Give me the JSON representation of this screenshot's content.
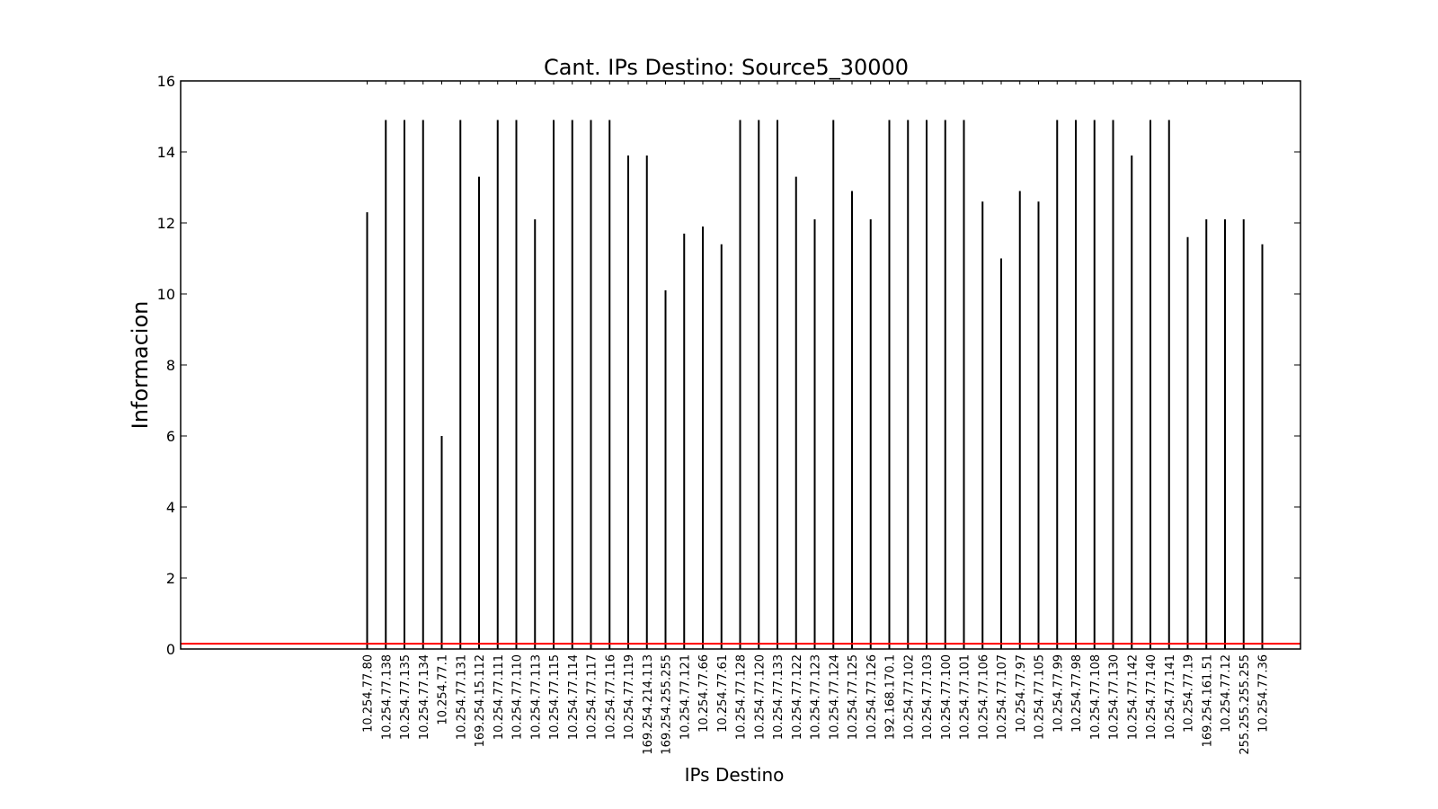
{
  "chart_data": {
    "type": "bar",
    "title": "Cant. IPs Destino: Source5_30000",
    "xlabel": "IPs Destino",
    "ylabel": "Informacion",
    "ylim": [
      0,
      16
    ],
    "yticks": [
      0,
      2,
      4,
      6,
      8,
      10,
      12,
      14,
      16
    ],
    "grid": false,
    "bar_color": "#000000",
    "reference_line": {
      "y": 0.15,
      "color": "#ff0000"
    },
    "categories": [
      "10.254.77.80",
      "10.254.77.138",
      "10.254.77.135",
      "10.254.77.134",
      "10.254.77.1",
      "10.254.77.131",
      "169.254.15.112",
      "10.254.77.111",
      "10.254.77.110",
      "10.254.77.113",
      "10.254.77.115",
      "10.254.77.114",
      "10.254.77.117",
      "10.254.77.116",
      "10.254.77.119",
      "169.254.214.113",
      "169.254.255.255",
      "10.254.77.121",
      "10.254.77.66",
      "10.254.77.61",
      "10.254.77.128",
      "10.254.77.120",
      "10.254.77.133",
      "10.254.77.122",
      "10.254.77.123",
      "10.254.77.124",
      "10.254.77.125",
      "10.254.77.126",
      "192.168.170.1",
      "10.254.77.102",
      "10.254.77.103",
      "10.254.77.100",
      "10.254.77.101",
      "10.254.77.106",
      "10.254.77.107",
      "10.254.77.97",
      "10.254.77.105",
      "10.254.77.99",
      "10.254.77.98",
      "10.254.77.108",
      "10.254.77.130",
      "10.254.77.142",
      "10.254.77.140",
      "10.254.77.141",
      "10.254.77.19",
      "169.254.161.51",
      "10.254.77.12",
      "255.255.255.255",
      "10.254.77.36"
    ],
    "values": [
      12.3,
      14.9,
      14.9,
      14.9,
      6.0,
      14.9,
      13.3,
      14.9,
      14.9,
      12.1,
      14.9,
      14.9,
      14.9,
      14.9,
      13.9,
      13.9,
      10.1,
      11.7,
      11.9,
      11.4,
      14.9,
      14.9,
      14.9,
      13.3,
      12.1,
      14.9,
      12.9,
      12.1,
      14.9,
      14.9,
      14.9,
      14.9,
      14.9,
      12.6,
      11.0,
      12.9,
      12.6,
      14.9,
      14.9,
      14.9,
      14.9,
      13.9,
      14.9,
      14.9,
      11.6,
      12.1,
      12.1,
      12.1,
      11.4
    ],
    "x_offset_slots": 10
  }
}
